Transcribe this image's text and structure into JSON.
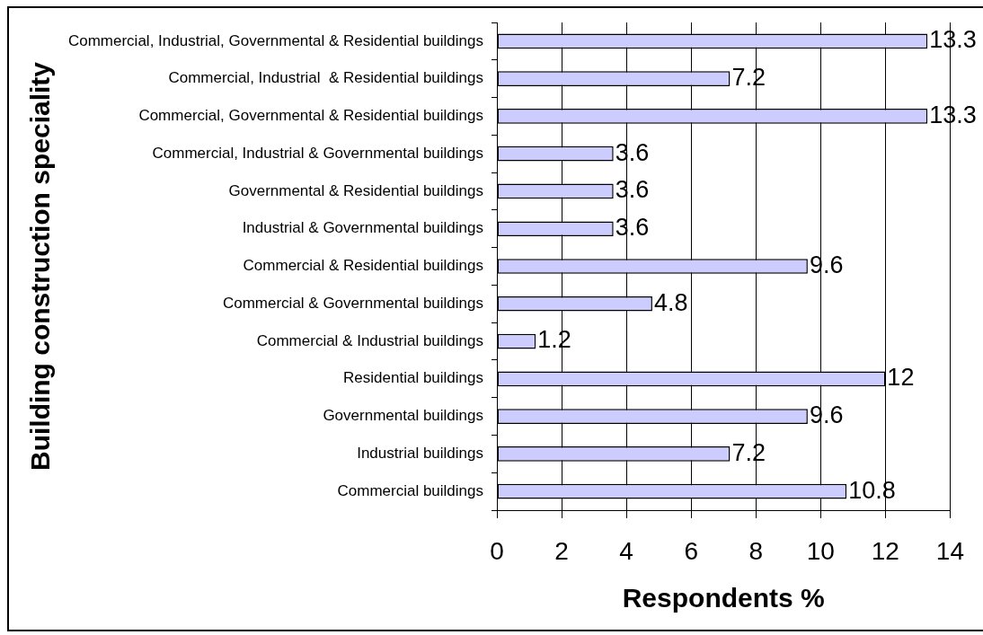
{
  "chart_data": {
    "type": "bar",
    "orientation": "horizontal",
    "xlabel": "Respondents %",
    "ylabel": "Building construction speciality",
    "categories": [
      "Commercial, Industrial, Governmental & Residential buildings",
      "Commercial, Industrial  & Residential buildings",
      "Commercial, Governmental & Residential buildings",
      "Commercial, Industrial & Governmental buildings",
      "Governmental & Residential buildings",
      "Industrial & Governmental buildings",
      "Commercial & Residential buildings",
      "Commercial & Governmental buildings",
      "Commercial & Industrial buildings",
      "Residential buildings",
      "Governmental buildings",
      "Industrial buildings",
      "Commercial buildings"
    ],
    "values": [
      13.3,
      7.2,
      13.3,
      3.6,
      3.6,
      3.6,
      9.6,
      4.8,
      1.2,
      12,
      9.6,
      7.2,
      10.8
    ],
    "color": "#ccccff",
    "xlim": [
      0,
      14
    ],
    "xticks": [
      0,
      2,
      4,
      6,
      8,
      10,
      12,
      14
    ],
    "grid": "x",
    "data_labels": true
  }
}
